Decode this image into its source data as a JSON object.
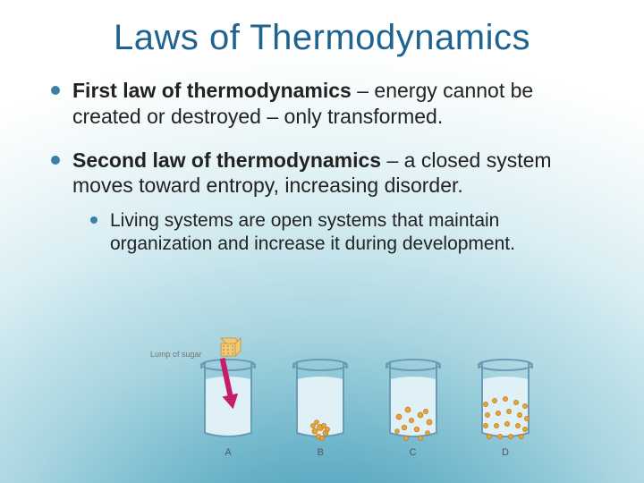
{
  "title": "Laws of Thermodynamics",
  "bullets": [
    {
      "bold": "First law of thermodynamics",
      "rest": " – energy cannot be created or destroyed – only transformed."
    },
    {
      "bold": "Second law of thermodynamics",
      "rest": " – a closed system moves toward entropy, increasing disorder.",
      "sub": [
        {
          "text": "Living systems are open systems that maintain organization and increase it during development."
        }
      ]
    }
  ],
  "diagram": {
    "beaker_outline": "#6b9bb5",
    "water_fill": "#dff1f7",
    "particle_fill": "#e8a23c",
    "particle_stroke": "#c47a14",
    "arrow_color": "#c61d6a",
    "cube_fill": "#f0c97a",
    "cube_stroke": "#c99a3a",
    "labels": [
      "A",
      "B",
      "C",
      "D"
    ],
    "sugar_label": "Lump of sugar",
    "beakers": [
      {
        "cube": true,
        "arrow": true,
        "particles": []
      },
      {
        "cube": false,
        "arrow": false,
        "particles": [
          [
            36,
            72,
            3.5
          ],
          [
            30,
            76,
            3
          ],
          [
            42,
            78,
            3
          ],
          [
            34,
            82,
            2.8
          ],
          [
            40,
            70,
            2.6
          ],
          [
            28,
            70,
            2.5
          ],
          [
            44,
            74,
            2.5
          ],
          [
            38,
            84,
            2.5
          ],
          [
            32,
            66,
            2.4
          ]
        ]
      },
      {
        "cube": false,
        "arrow": false,
        "particles": [
          [
            20,
            60,
            3
          ],
          [
            30,
            52,
            3
          ],
          [
            44,
            58,
            3
          ],
          [
            54,
            66,
            3
          ],
          [
            26,
            72,
            2.8
          ],
          [
            40,
            74,
            2.8
          ],
          [
            50,
            54,
            2.6
          ],
          [
            34,
            64,
            2.6
          ],
          [
            18,
            76,
            2.4
          ],
          [
            52,
            78,
            2.4
          ],
          [
            28,
            84,
            2.4
          ],
          [
            44,
            84,
            2.4
          ]
        ]
      },
      {
        "cube": false,
        "arrow": false,
        "particles": [
          [
            14,
            46,
            2.6
          ],
          [
            24,
            42,
            2.6
          ],
          [
            36,
            40,
            2.6
          ],
          [
            48,
            44,
            2.6
          ],
          [
            58,
            48,
            2.6
          ],
          [
            16,
            58,
            2.6
          ],
          [
            28,
            56,
            2.6
          ],
          [
            40,
            54,
            2.6
          ],
          [
            52,
            58,
            2.6
          ],
          [
            60,
            62,
            2.6
          ],
          [
            14,
            70,
            2.6
          ],
          [
            26,
            70,
            2.6
          ],
          [
            38,
            68,
            2.6
          ],
          [
            50,
            70,
            2.6
          ],
          [
            58,
            74,
            2.6
          ],
          [
            18,
            82,
            2.6
          ],
          [
            30,
            82,
            2.6
          ],
          [
            42,
            82,
            2.6
          ],
          [
            54,
            82,
            2.6
          ]
        ]
      }
    ]
  }
}
